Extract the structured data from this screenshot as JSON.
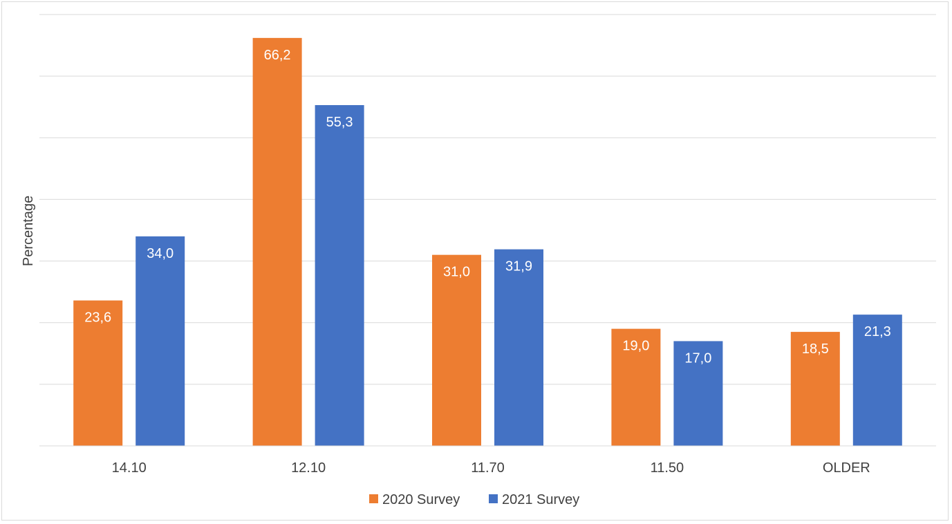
{
  "chart_data": {
    "type": "bar",
    "categories": [
      "14.10",
      "12.10",
      "11.70",
      "11.50",
      "OLDER"
    ],
    "series": [
      {
        "name": "2020 Survey",
        "color": "#ED7D31",
        "values": [
          23.6,
          66.2,
          31.0,
          19.0,
          18.5
        ],
        "labels": [
          "23,6",
          "66,2",
          "31,0",
          "19,0",
          "18,5"
        ]
      },
      {
        "name": "2021 Survey",
        "color": "#4472C4",
        "values": [
          34.0,
          55.3,
          31.9,
          17.0,
          21.3
        ],
        "labels": [
          "34,0",
          "55,3",
          "31,9",
          "17,0",
          "21,3"
        ]
      }
    ],
    "title": "",
    "xlabel": "",
    "ylabel": "Percentage",
    "ylim": [
      0,
      70
    ],
    "grid": true,
    "legend": "bottom",
    "gridline_color": "#d9d9d9"
  }
}
